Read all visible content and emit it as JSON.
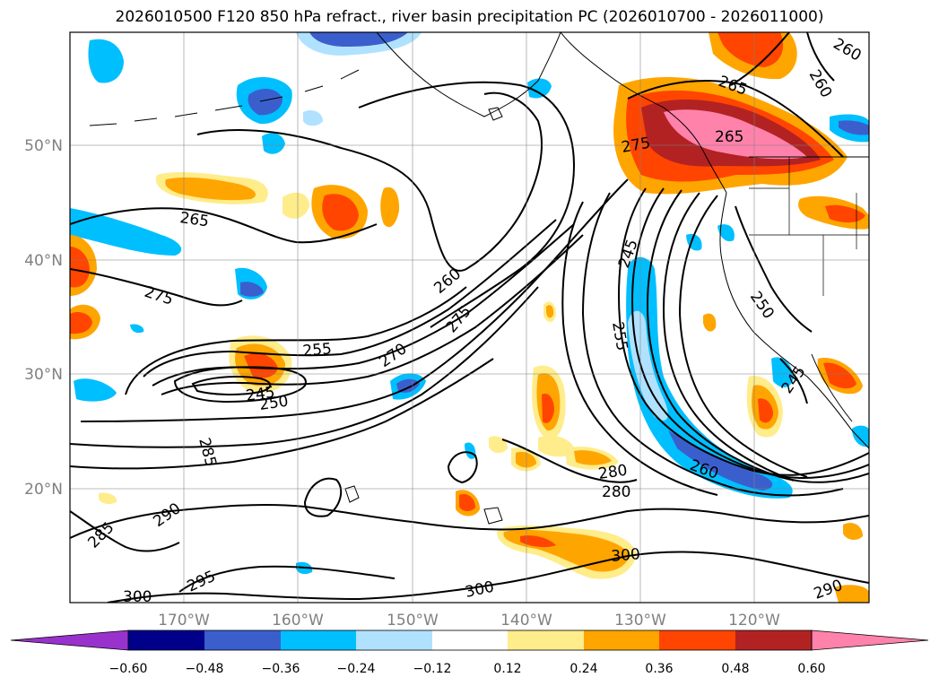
{
  "title": "2026010500 F120 850 hPa refract., river basin precipitation PC (2026010700 - 2026011000)",
  "lat_labels": [
    "50°N",
    "40°N",
    "30°N",
    "20°N"
  ],
  "lon_labels": [
    "170°W",
    "160°W",
    "150°W",
    "140°W",
    "130°W",
    "120°W"
  ],
  "contour_labels": [
    "265",
    "275",
    "255",
    "245",
    "250",
    "260",
    "270",
    "275",
    "285",
    "285",
    "290",
    "295",
    "300",
    "300",
    "280",
    "280",
    "260",
    "245",
    "255",
    "250",
    "245",
    "275",
    "265",
    "260",
    "265",
    "260",
    "290",
    "300"
  ],
  "colorbar": {
    "colors": [
      "#9932CC",
      "#00008B",
      "#3A5FCD",
      "#00BFFF",
      "#B0E2FF",
      "#FFFFFF",
      "#FFEC8B",
      "#FFA500",
      "#FF4500",
      "#B22222",
      "#FF82AB"
    ],
    "ticks": [
      "−0.60",
      "−0.48",
      "−0.36",
      "−0.24",
      "−0.12",
      "0.12",
      "0.24",
      "0.36",
      "0.48",
      "0.60"
    ]
  }
}
